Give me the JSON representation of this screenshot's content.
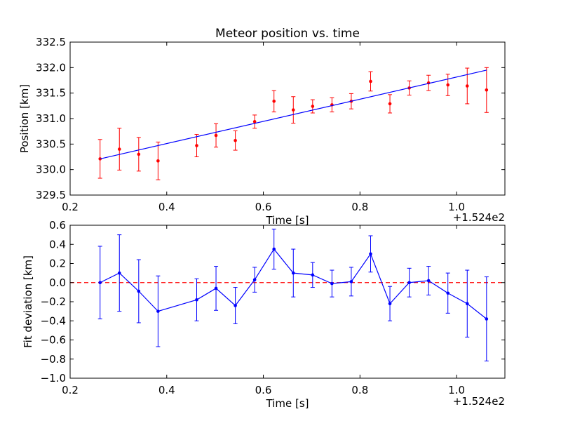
{
  "chart_data": [
    {
      "type": "scatter",
      "title": "Meteor position vs. time",
      "xlabel": "Time [s]",
      "ylabel": "Position [km]",
      "x_offset_label": "+1.524e2",
      "xlim": [
        0.2,
        1.1
      ],
      "ylim": [
        329.5,
        332.5
      ],
      "x_ticks": [
        0.2,
        0.4,
        0.6,
        0.8,
        1.0
      ],
      "x_tick_labels": [
        "0.2",
        "0.4",
        "0.6",
        "0.8",
        "1.0"
      ],
      "y_ticks": [
        329.5,
        330.0,
        330.5,
        331.0,
        331.5,
        332.0,
        332.5
      ],
      "y_tick_labels": [
        "329.5",
        "330.0",
        "330.5",
        "331.0",
        "331.5",
        "332.0",
        "332.5"
      ],
      "grid": false,
      "series": [
        {
          "kind": "errorbar-points",
          "color": "#ff0000",
          "x": [
            0.262,
            0.302,
            0.342,
            0.382,
            0.462,
            0.502,
            0.542,
            0.582,
            0.622,
            0.662,
            0.702,
            0.742,
            0.782,
            0.822,
            0.862,
            0.902,
            0.942,
            0.982,
            1.022,
            1.062
          ],
          "y": [
            330.21,
            330.4,
            330.3,
            330.17,
            330.47,
            330.67,
            330.57,
            330.94,
            331.34,
            331.17,
            331.24,
            331.27,
            331.34,
            331.73,
            331.29,
            331.6,
            331.7,
            331.66,
            331.64,
            331.56
          ],
          "yerr": [
            0.38,
            0.41,
            0.33,
            0.37,
            0.22,
            0.23,
            0.19,
            0.13,
            0.21,
            0.26,
            0.13,
            0.14,
            0.15,
            0.19,
            0.18,
            0.14,
            0.15,
            0.21,
            0.35,
            0.44
          ]
        },
        {
          "kind": "fit-line",
          "color": "#0000ff",
          "x": [
            0.262,
            1.062
          ],
          "y": [
            330.21,
            331.95
          ]
        }
      ]
    },
    {
      "type": "line",
      "title": "",
      "xlabel": "Time [s]",
      "ylabel": "Fit deviation [km]",
      "x_offset_label": "+1.524e2",
      "xlim": [
        0.2,
        1.1
      ],
      "ylim": [
        -1.0,
        0.6
      ],
      "x_ticks": [
        0.2,
        0.4,
        0.6,
        0.8,
        1.0
      ],
      "x_tick_labels": [
        "0.2",
        "0.4",
        "0.6",
        "0.8",
        "1.0"
      ],
      "y_ticks": [
        -1.0,
        -0.8,
        -0.6,
        -0.4,
        -0.2,
        0.0,
        0.2,
        0.4,
        0.6
      ],
      "y_tick_labels": [
        "−1.0",
        "−0.8",
        "−0.6",
        "−0.4",
        "−0.2",
        "0.0",
        "0.2",
        "0.4",
        "0.6"
      ],
      "grid": false,
      "zero_line": {
        "y": 0.0,
        "color": "#ff0000",
        "style": "dashed"
      },
      "series": [
        {
          "kind": "errorbar-line",
          "color": "#0000ff",
          "x": [
            0.262,
            0.302,
            0.342,
            0.382,
            0.462,
            0.502,
            0.542,
            0.582,
            0.622,
            0.662,
            0.702,
            0.742,
            0.782,
            0.822,
            0.862,
            0.902,
            0.942,
            0.982,
            1.022,
            1.062
          ],
          "y": [
            0.0,
            0.1,
            -0.09,
            -0.3,
            -0.18,
            -0.06,
            -0.24,
            0.03,
            0.35,
            0.1,
            0.08,
            -0.01,
            0.01,
            0.3,
            -0.22,
            0.0,
            0.02,
            -0.11,
            -0.22,
            -0.38
          ],
          "yerr": [
            0.38,
            0.4,
            0.33,
            0.37,
            0.22,
            0.23,
            0.19,
            0.13,
            0.21,
            0.25,
            0.13,
            0.14,
            0.15,
            0.19,
            0.18,
            0.15,
            0.15,
            0.21,
            0.35,
            0.44
          ]
        }
      ]
    }
  ]
}
